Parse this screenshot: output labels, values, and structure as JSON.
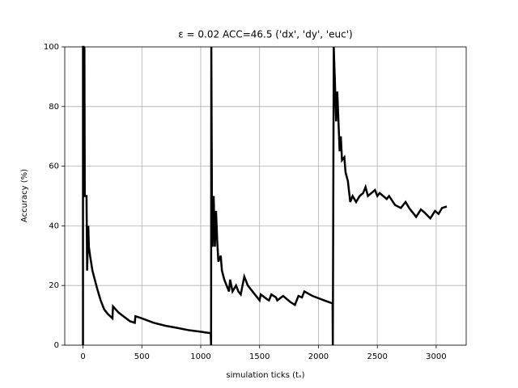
{
  "chart_data": {
    "type": "line",
    "title": "ε = 0.02 ACC=46.5 ('dx', 'dy', 'euc')",
    "x_label": "simulation ticks (tₛ)",
    "y_label": "Accuracy (%)",
    "xlim": [
      -155,
      3255
    ],
    "ylim": [
      0,
      100
    ],
    "xticks": [
      0,
      500,
      1000,
      1500,
      2000,
      2500,
      3000
    ],
    "yticks": [
      0,
      20,
      40,
      60,
      80,
      100
    ],
    "grid": true,
    "series": [
      {
        "color": "#000000",
        "x": [
          0,
          0,
          5,
          8,
          12,
          15,
          30,
          35,
          45,
          50,
          60,
          80,
          100,
          120,
          150,
          180,
          210,
          250,
          255,
          300,
          350,
          400,
          440,
          445,
          500,
          600,
          700,
          800,
          900,
          1000,
          1085,
          1088,
          1090,
          1095,
          1100,
          1110,
          1120,
          1130,
          1140,
          1150,
          1170,
          1180,
          1200,
          1220,
          1240,
          1250,
          1270,
          1300,
          1320,
          1340,
          1370,
          1400,
          1450,
          1500,
          1510,
          1560,
          1580,
          1600,
          1640,
          1650,
          1700,
          1760,
          1800,
          1830,
          1860,
          1880,
          1950,
          2050,
          2120,
          2122,
          2130,
          2140,
          2150,
          2160,
          2170,
          2180,
          2190,
          2200,
          2220,
          2230,
          2250,
          2270,
          2290,
          2320,
          2350,
          2380,
          2400,
          2420,
          2450,
          2480,
          2500,
          2520,
          2550,
          2580,
          2600,
          2650,
          2700,
          2740,
          2770,
          2800,
          2830,
          2870,
          2900,
          2950,
          2990,
          3020,
          3050,
          3090
        ],
        "values": [
          0,
          100,
          100,
          50,
          100,
          50,
          50,
          25,
          40,
          33,
          30,
          25,
          22,
          19,
          15,
          12,
          10.5,
          9,
          13,
          11,
          9.5,
          8,
          7.5,
          9.7,
          9,
          7.5,
          6.5,
          5.8,
          5,
          4.5,
          4,
          0,
          100,
          50,
          33,
          50,
          33,
          45,
          35,
          28,
          30,
          25,
          22,
          20,
          18,
          22,
          18,
          20,
          18,
          17,
          23,
          20,
          17.5,
          15,
          17,
          15.5,
          15,
          17,
          16,
          15,
          16.5,
          14.5,
          13.5,
          16.5,
          16,
          18,
          16.5,
          15,
          14,
          0,
          100,
          88,
          75,
          85,
          75,
          65,
          70,
          62,
          63,
          58,
          55,
          48,
          50,
          48,
          50,
          51,
          53,
          50,
          51,
          52,
          50,
          51,
          50,
          49,
          50,
          47,
          46,
          48,
          46,
          44.5,
          43,
          45.5,
          44.5,
          42.5,
          45,
          44,
          46,
          46.5
        ]
      }
    ]
  }
}
